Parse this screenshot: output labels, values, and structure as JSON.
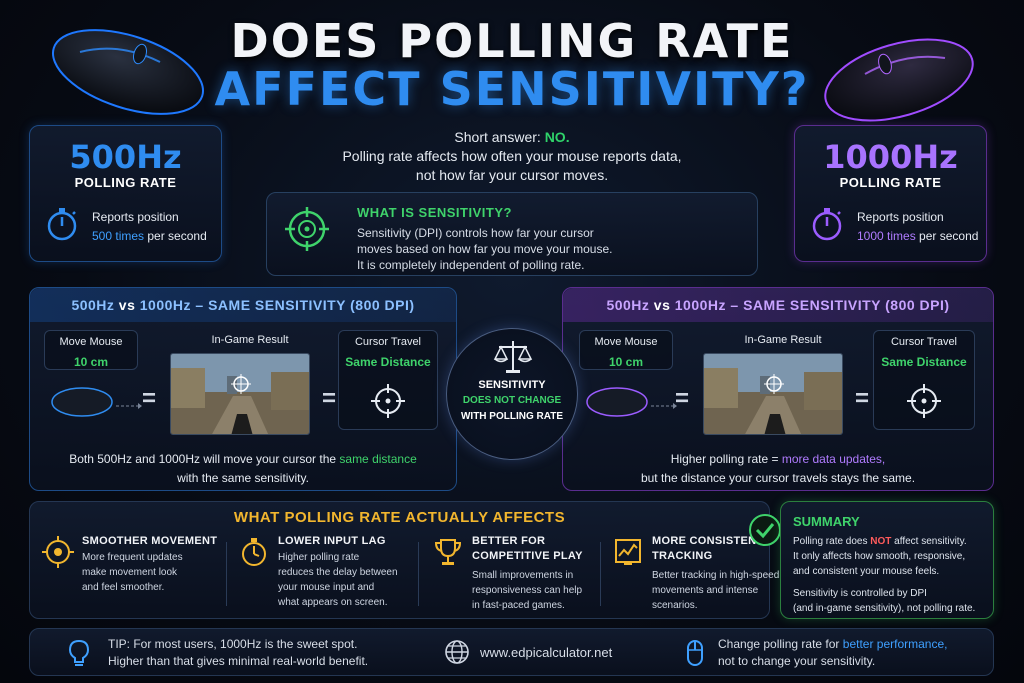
{
  "title": {
    "line1": "DOES POLLING RATE",
    "line2": "AFFECT SENSITIVITY?"
  },
  "colors": {
    "blue": "#2f8cf0",
    "purple": "#9b5cff",
    "green": "#3fd36b",
    "gold": "#f2b62e",
    "red": "#ff5b5b"
  },
  "short_answer": {
    "prefix": "Short answer:",
    "answer": "NO.",
    "line2": "Polling rate affects how often your mouse reports data,",
    "line3": "not how far your cursor moves."
  },
  "left_box": {
    "hz": "500Hz",
    "label": "POLLING RATE",
    "line1": "Reports position",
    "times": "500 times",
    "suffix": "per second",
    "icon": "stopwatch-icon"
  },
  "right_box": {
    "hz": "1000Hz",
    "label": "POLLING RATE",
    "line1": "Reports position",
    "times": "1000 times",
    "suffix": "per second",
    "icon": "stopwatch-icon"
  },
  "sensitivity": {
    "title": "WHAT IS SENSITIVITY?",
    "line1": "Sensitivity (DPI) controls how far your cursor",
    "line2": "moves based on how far you move your mouse.",
    "line3": "It is completely independent of polling rate.",
    "icon": "crosshair-icon"
  },
  "comparison": {
    "head_a": "500Hz",
    "head_vs": "vs",
    "head_b": "1000Hz",
    "head_rest": "– SAME SENSITIVITY (800 DPI)",
    "move_label": "Move Mouse",
    "move_value": "10 cm",
    "result_label": "In-Game Result",
    "travel_label": "Cursor Travel",
    "travel_value": "Same Distance",
    "eq": "="
  },
  "left_foot": {
    "pre": "Both 500Hz and 1000Hz will move your cursor the",
    "highlight": "same distance",
    "line2": "with the same sensitivity."
  },
  "right_foot": {
    "pre": "Higher polling rate =",
    "highlight": "more data updates,",
    "line2": "but the distance your cursor travels stays the same."
  },
  "center": {
    "line1": "SENSITIVITY",
    "line2": "DOES NOT CHANGE",
    "line3": "WITH POLLING RATE",
    "icon": "scale-icon"
  },
  "affects": {
    "title": "WHAT POLLING RATE ACTUALLY AFFECTS",
    "items": [
      {
        "title1": "SMOOTHER MOVEMENT",
        "title2": "",
        "lines": [
          "More frequent updates",
          "make movement look",
          "and feel smoother."
        ],
        "icon": "target-icon"
      },
      {
        "title1": "LOWER INPUT LAG",
        "title2": "",
        "lines": [
          "Higher polling rate",
          "reduces the delay between",
          "your mouse input and",
          "what appears on screen."
        ],
        "icon": "stopwatch-icon"
      },
      {
        "title1": "BETTER FOR",
        "title2": "COMPETITIVE PLAY",
        "lines": [
          "Small improvements in",
          "responsiveness can help",
          "in fast-paced games."
        ],
        "icon": "trophy-icon"
      },
      {
        "title1": "MORE CONSISTENT",
        "title2": "TRACKING",
        "lines": [
          "Better tracking in high-speed",
          "movements and intense",
          "scenarios."
        ],
        "icon": "chart-icon"
      }
    ]
  },
  "summary": {
    "title": "SUMMARY",
    "l1_pre": "Polling rate does",
    "l1_not": "NOT",
    "l1_post": "affect sensitivity.",
    "l2": "It only affects how smooth, responsive,",
    "l3": "and consistent your mouse feels.",
    "l4": "Sensitivity is controlled by DPI",
    "l5": "(and in-game sensitivity), not polling rate.",
    "icon": "check-icon"
  },
  "footer": {
    "tip1": "TIP: For most users, 1000Hz is the sweet spot.",
    "tip2": "Higher than that gives minimal real-world benefit.",
    "website": "www.edpicalculator.net",
    "change_pre": "Change polling rate for",
    "change_hl": "better performance,",
    "change_l2": "not to change your sensitivity.",
    "icons": [
      "lightbulb-icon",
      "globe-icon",
      "mouse-icon"
    ]
  }
}
